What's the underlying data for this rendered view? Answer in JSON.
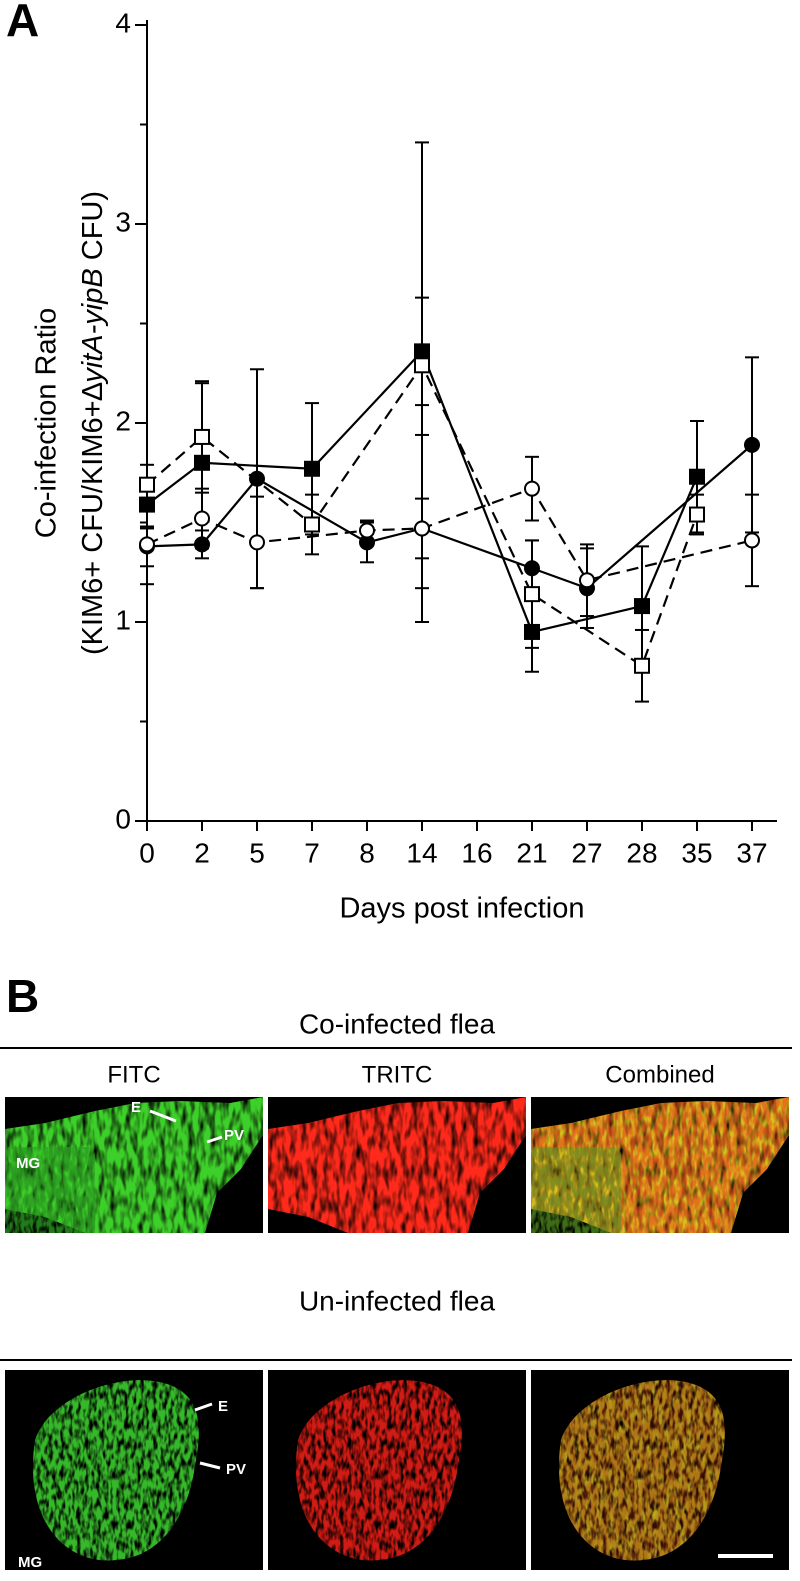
{
  "chart_data": {
    "type": "line",
    "panel_label": "A",
    "ylabel": "Co-infection Ratio",
    "ylabel2": [
      "(KIM6+ CFU/KIM6+∆",
      "yitA-yipB",
      " CFU)"
    ],
    "xlabel": "Days post infection",
    "categories": [
      "0",
      "2",
      "5",
      "7",
      "8",
      "14",
      "16",
      "21",
      "27",
      "28",
      "35",
      "37"
    ],
    "ylim": [
      0,
      4
    ],
    "yticks": [
      0,
      1,
      2,
      3,
      4
    ],
    "yminorticks": [
      0.5,
      1.5,
      2.5,
      3.5
    ],
    "series": [
      {
        "marker": "square",
        "filled": true,
        "dashed": false,
        "color": "#000000",
        "x": [
          "0",
          "2",
          "7",
          "14",
          "21",
          "28",
          "35"
        ],
        "values": [
          1.59,
          1.8,
          1.77,
          2.36,
          0.95,
          1.08,
          1.73
        ],
        "errors": [
          0.12,
          0.4,
          0.33,
          0.27,
          0.2,
          0.3,
          0.28
        ]
      },
      {
        "marker": "square",
        "filled": false,
        "dashed": true,
        "color": "#000000",
        "x": [
          "0",
          "2",
          "7",
          "14",
          "21",
          "28",
          "35"
        ],
        "values": [
          1.69,
          1.93,
          1.49,
          2.29,
          1.14,
          0.78,
          1.54
        ],
        "errors": [
          0.1,
          0.28,
          0.15,
          1.12,
          0.27,
          0.18,
          0.1
        ]
      },
      {
        "marker": "circle",
        "filled": true,
        "dashed": false,
        "color": "#000000",
        "x": [
          "0",
          "2",
          "5",
          "8",
          "14",
          "21",
          "27",
          "37"
        ],
        "values": [
          1.38,
          1.39,
          1.72,
          1.4,
          1.47,
          1.27,
          1.17,
          1.89
        ],
        "errors": [
          0.1,
          0.07,
          0.55,
          0.1,
          0.15,
          0.14,
          0.2,
          0.44
        ]
      },
      {
        "marker": "circle",
        "filled": false,
        "dashed": true,
        "color": "#000000",
        "x": [
          "0",
          "2",
          "5",
          "8",
          "14",
          "21",
          "27",
          "37"
        ],
        "values": [
          1.39,
          1.52,
          1.4,
          1.46,
          1.47,
          1.67,
          1.21,
          1.41
        ],
        "errors": [
          0.2,
          0.15,
          0.23,
          0.05,
          0.47,
          0.16,
          0.18,
          0.23
        ]
      }
    ]
  },
  "panel_b": {
    "label": "B",
    "groups": [
      {
        "title": "Co-infected flea"
      },
      {
        "title": "Un-infected flea"
      }
    ],
    "columns": [
      "FITC",
      "TRITC",
      "Combined"
    ],
    "annotations": [
      "E",
      "PV",
      "MG"
    ]
  }
}
